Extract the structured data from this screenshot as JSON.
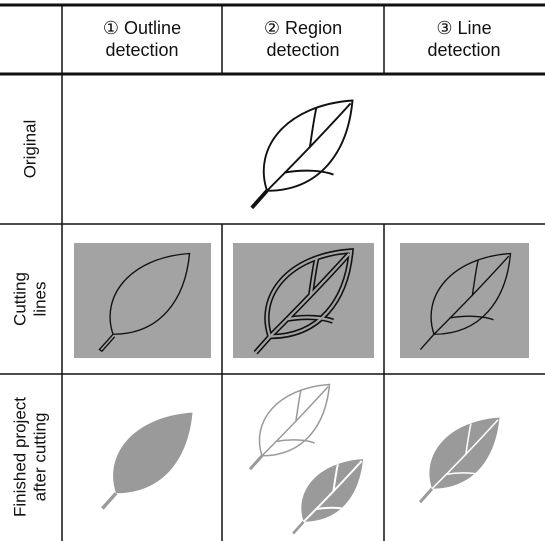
{
  "header": {
    "columns": [
      {
        "lines": [
          "① Outline",
          "detection"
        ]
      },
      {
        "lines": [
          "② Region",
          "detection"
        ]
      },
      {
        "lines": [
          "③ Line",
          "detection"
        ]
      }
    ]
  },
  "rows": [
    {
      "lines": [
        "Original"
      ]
    },
    {
      "lines": [
        "Cutting",
        "lines"
      ]
    },
    {
      "lines": [
        "Finished project",
        "after cutting"
      ]
    }
  ]
}
